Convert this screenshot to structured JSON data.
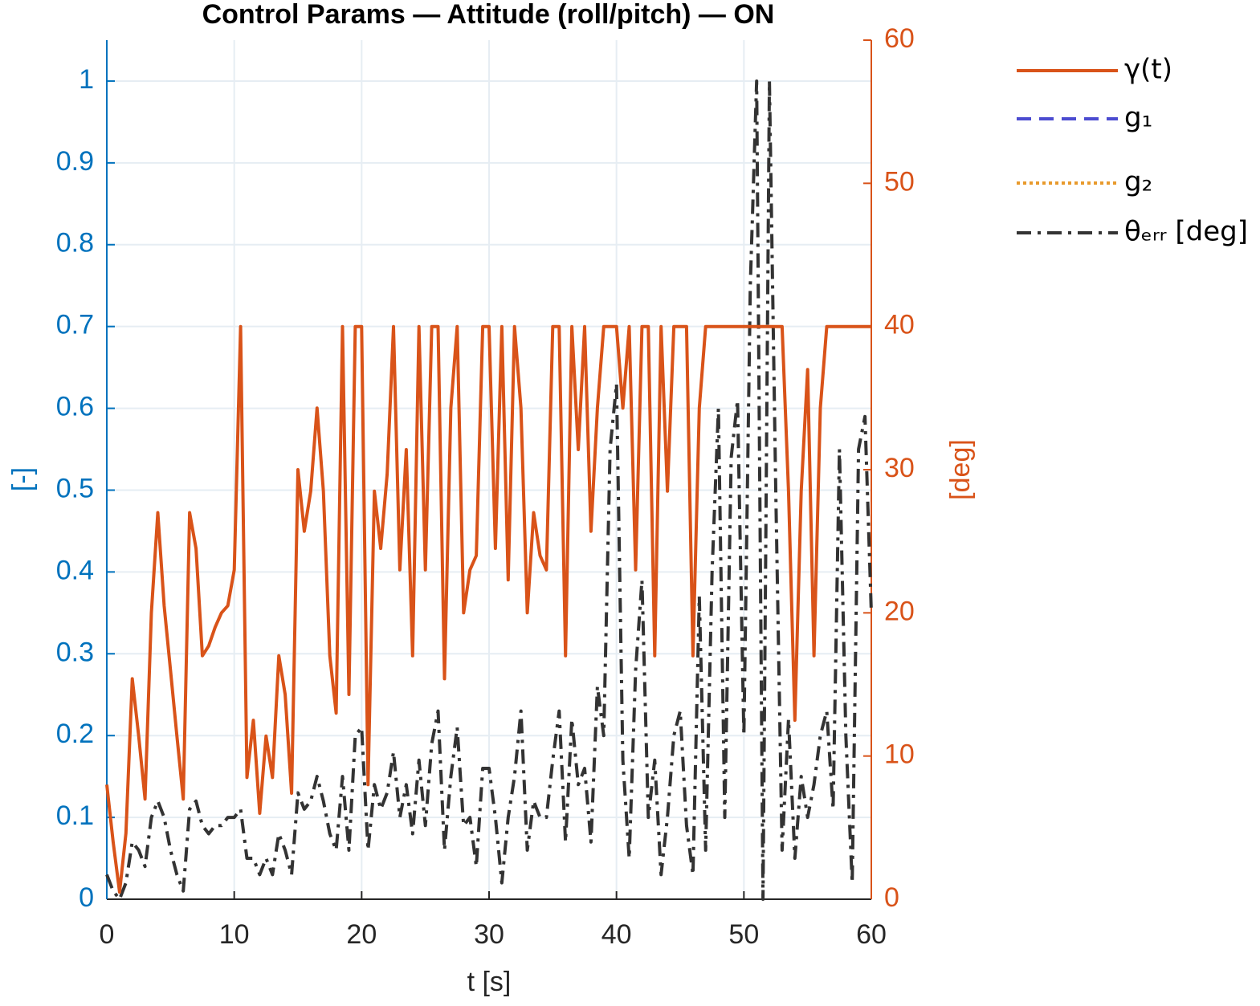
{
  "chart_data": {
    "type": "line",
    "title": "Control Params — Attitude (roll/pitch) — ON",
    "xlabel": "t [s]",
    "ylabel": "[-]",
    "y2label": "[deg]",
    "xlim": [
      0,
      60
    ],
    "xticks": [
      0,
      10,
      20,
      30,
      40,
      50,
      60
    ],
    "ylim": [
      0,
      1.05
    ],
    "yticks": [
      0,
      0.1,
      0.2,
      0.3,
      0.4,
      0.5,
      0.6,
      0.7,
      0.8,
      0.9,
      1
    ],
    "y2lim": [
      0,
      60
    ],
    "y2ticks": [
      0,
      10,
      20,
      30,
      40,
      50,
      60
    ],
    "grid": true,
    "legend": "outside-right-top",
    "left_axis_color": "#0072BD",
    "right_axis_color": "#D95319",
    "x": [
      0,
      0.5,
      1,
      1.5,
      2,
      2.5,
      3,
      3.5,
      4,
      4.5,
      5,
      5.5,
      6,
      6.5,
      7,
      7.5,
      8,
      8.5,
      9,
      9.5,
      10,
      10.5,
      11,
      11.5,
      12,
      12.5,
      13,
      13.5,
      14,
      14.5,
      15,
      15.5,
      16,
      16.5,
      17,
      17.5,
      18,
      18.5,
      19,
      19.5,
      20,
      20.5,
      21,
      21.5,
      22,
      22.5,
      23,
      23.5,
      24,
      24.5,
      25,
      25.5,
      26,
      26.5,
      27,
      27.5,
      28,
      28.5,
      29,
      29.5,
      30,
      30.5,
      31,
      31.5,
      32,
      32.5,
      33,
      33.5,
      34,
      34.5,
      35,
      35.5,
      36,
      36.5,
      37,
      37.5,
      38,
      38.5,
      39,
      39.5,
      40,
      40.5,
      41,
      41.5,
      42,
      42.5,
      43,
      43.5,
      44,
      44.5,
      45,
      45.5,
      46,
      46.5,
      47,
      47.5,
      48,
      48.5,
      49,
      49.5,
      50,
      50.5,
      51,
      51.5,
      52,
      52.5,
      53,
      53.5,
      54,
      54.5,
      55,
      55.5,
      56,
      56.5,
      57,
      57.5,
      58,
      58.5,
      59,
      59.5,
      60
    ],
    "series": [
      {
        "name": "γ(t)",
        "color": "#D95319",
        "style": "solid",
        "axis": "y2",
        "values": [
          8,
          4,
          0.5,
          4.6,
          15.4,
          11.4,
          7,
          20,
          27,
          20.5,
          16,
          11.4,
          7,
          27,
          24.5,
          17,
          17.7,
          19,
          20,
          20.5,
          23,
          40,
          8.5,
          12.5,
          6,
          11.4,
          8.5,
          17,
          14.3,
          7.4,
          30,
          25.7,
          28.5,
          34.3,
          28.5,
          17,
          13,
          40,
          14.3,
          40,
          40,
          8,
          28.5,
          24.5,
          29.7,
          40,
          23,
          31.4,
          17,
          40,
          23,
          40,
          40,
          15.4,
          34.3,
          40,
          20,
          23,
          24,
          40,
          40,
          24.5,
          40,
          22.3,
          40,
          34.3,
          20,
          27,
          24,
          23,
          40,
          40,
          17,
          40,
          31.4,
          40,
          25.7,
          34.3,
          40,
          40,
          40,
          34.3,
          40,
          23,
          40,
          40,
          17,
          40,
          28.5,
          40,
          40,
          40,
          17,
          34.3,
          40,
          40,
          40,
          40,
          40,
          40,
          40,
          40,
          40,
          40,
          40,
          40,
          40,
          28.5,
          12.5,
          28.5,
          37,
          17,
          34.3,
          40,
          40,
          40,
          40,
          40,
          40,
          40,
          40
        ]
      },
      {
        "name": "g₁",
        "color": "#4B4BD0",
        "style": "dashed",
        "axis": "y",
        "values": [
          null,
          null,
          null,
          null,
          null,
          null,
          null,
          null,
          null,
          null,
          null,
          null,
          null,
          null,
          null,
          null,
          null,
          null,
          null,
          null,
          null,
          null,
          null,
          null,
          null,
          null,
          null,
          null,
          null,
          null,
          null,
          null,
          null,
          null,
          null,
          null,
          null,
          null,
          null,
          null,
          null,
          null,
          null,
          null,
          null,
          null,
          null,
          null,
          null,
          null,
          null,
          null,
          null,
          null,
          null,
          null,
          null,
          null,
          null,
          null,
          null,
          null,
          null,
          null,
          null,
          null,
          null,
          null,
          null,
          null,
          null,
          null,
          null,
          null,
          null,
          null,
          null,
          null,
          null,
          null,
          null,
          null,
          null,
          null,
          null,
          null,
          null,
          null,
          null,
          null,
          null,
          null,
          null,
          null,
          null,
          null,
          null,
          null,
          null,
          null,
          null,
          null,
          null,
          null,
          null,
          null,
          null,
          null,
          null,
          null,
          null,
          null,
          null,
          null,
          null,
          null,
          null,
          null,
          null,
          null,
          null
        ]
      },
      {
        "name": "g₂",
        "color": "#E89A2C",
        "style": "dotted",
        "axis": "y",
        "values": [
          null,
          null,
          null,
          null,
          null,
          null,
          null,
          null,
          null,
          null,
          null,
          null,
          null,
          null,
          null,
          null,
          null,
          null,
          null,
          null,
          null,
          null,
          null,
          null,
          null,
          null,
          null,
          null,
          null,
          null,
          null,
          null,
          null,
          null,
          null,
          null,
          null,
          null,
          null,
          null,
          null,
          null,
          null,
          null,
          null,
          null,
          null,
          null,
          null,
          null,
          null,
          null,
          null,
          null,
          null,
          null,
          null,
          null,
          null,
          null,
          null,
          null,
          null,
          null,
          null,
          null,
          null,
          null,
          null,
          null,
          null,
          null,
          null,
          null,
          null,
          null,
          null,
          null,
          null,
          null,
          null,
          null,
          null,
          null,
          null,
          null,
          null,
          null,
          null,
          null,
          null,
          null,
          null,
          null,
          null,
          null,
          null,
          null,
          null,
          null,
          null,
          null,
          null,
          null,
          null,
          null,
          null,
          null,
          null,
          null,
          null,
          null,
          null,
          null,
          null,
          null,
          null,
          null,
          null,
          null,
          null
        ]
      },
      {
        "name": "θₑᵣᵣ [deg]",
        "color": "#333333",
        "style": "dashdot",
        "axis": "y",
        "values": [
          0.03,
          0.01,
          0,
          0.02,
          0.07,
          0.06,
          0.04,
          0.1,
          0.12,
          0.1,
          0.06,
          0.03,
          0.01,
          0.11,
          0.12,
          0.09,
          0.08,
          0.09,
          0.09,
          0.1,
          0.1,
          0.11,
          0.05,
          0.05,
          0.03,
          0.05,
          0.03,
          0.08,
          0.06,
          0.03,
          0.13,
          0.11,
          0.12,
          0.15,
          0.12,
          0.08,
          0.06,
          0.15,
          0.06,
          0.2,
          0.21,
          0.06,
          0.14,
          0.11,
          0.13,
          0.18,
          0.1,
          0.14,
          0.08,
          0.17,
          0.09,
          0.19,
          0.23,
          0.06,
          0.15,
          0.21,
          0.09,
          0.1,
          0.04,
          0.16,
          0.16,
          0.1,
          0.02,
          0.1,
          0.15,
          0.23,
          0.06,
          0.12,
          0.1,
          0.1,
          0.17,
          0.23,
          0.07,
          0.22,
          0.14,
          0.16,
          0.07,
          0.26,
          0.2,
          0.55,
          0.63,
          0.17,
          0.05,
          0.28,
          0.39,
          0.1,
          0.17,
          0.03,
          0.1,
          0.2,
          0.23,
          0.09,
          0.03,
          0.37,
          0.06,
          0.4,
          0.6,
          0.1,
          0.54,
          0.61,
          0.2,
          0.75,
          1,
          0,
          1,
          0.5,
          0.06,
          0.22,
          0.05,
          0.15,
          0.1,
          0.14,
          0.2,
          0.23,
          0.11,
          0.55,
          0.2,
          0.02,
          0.55,
          0.59,
          0.35
        ]
      }
    ]
  }
}
